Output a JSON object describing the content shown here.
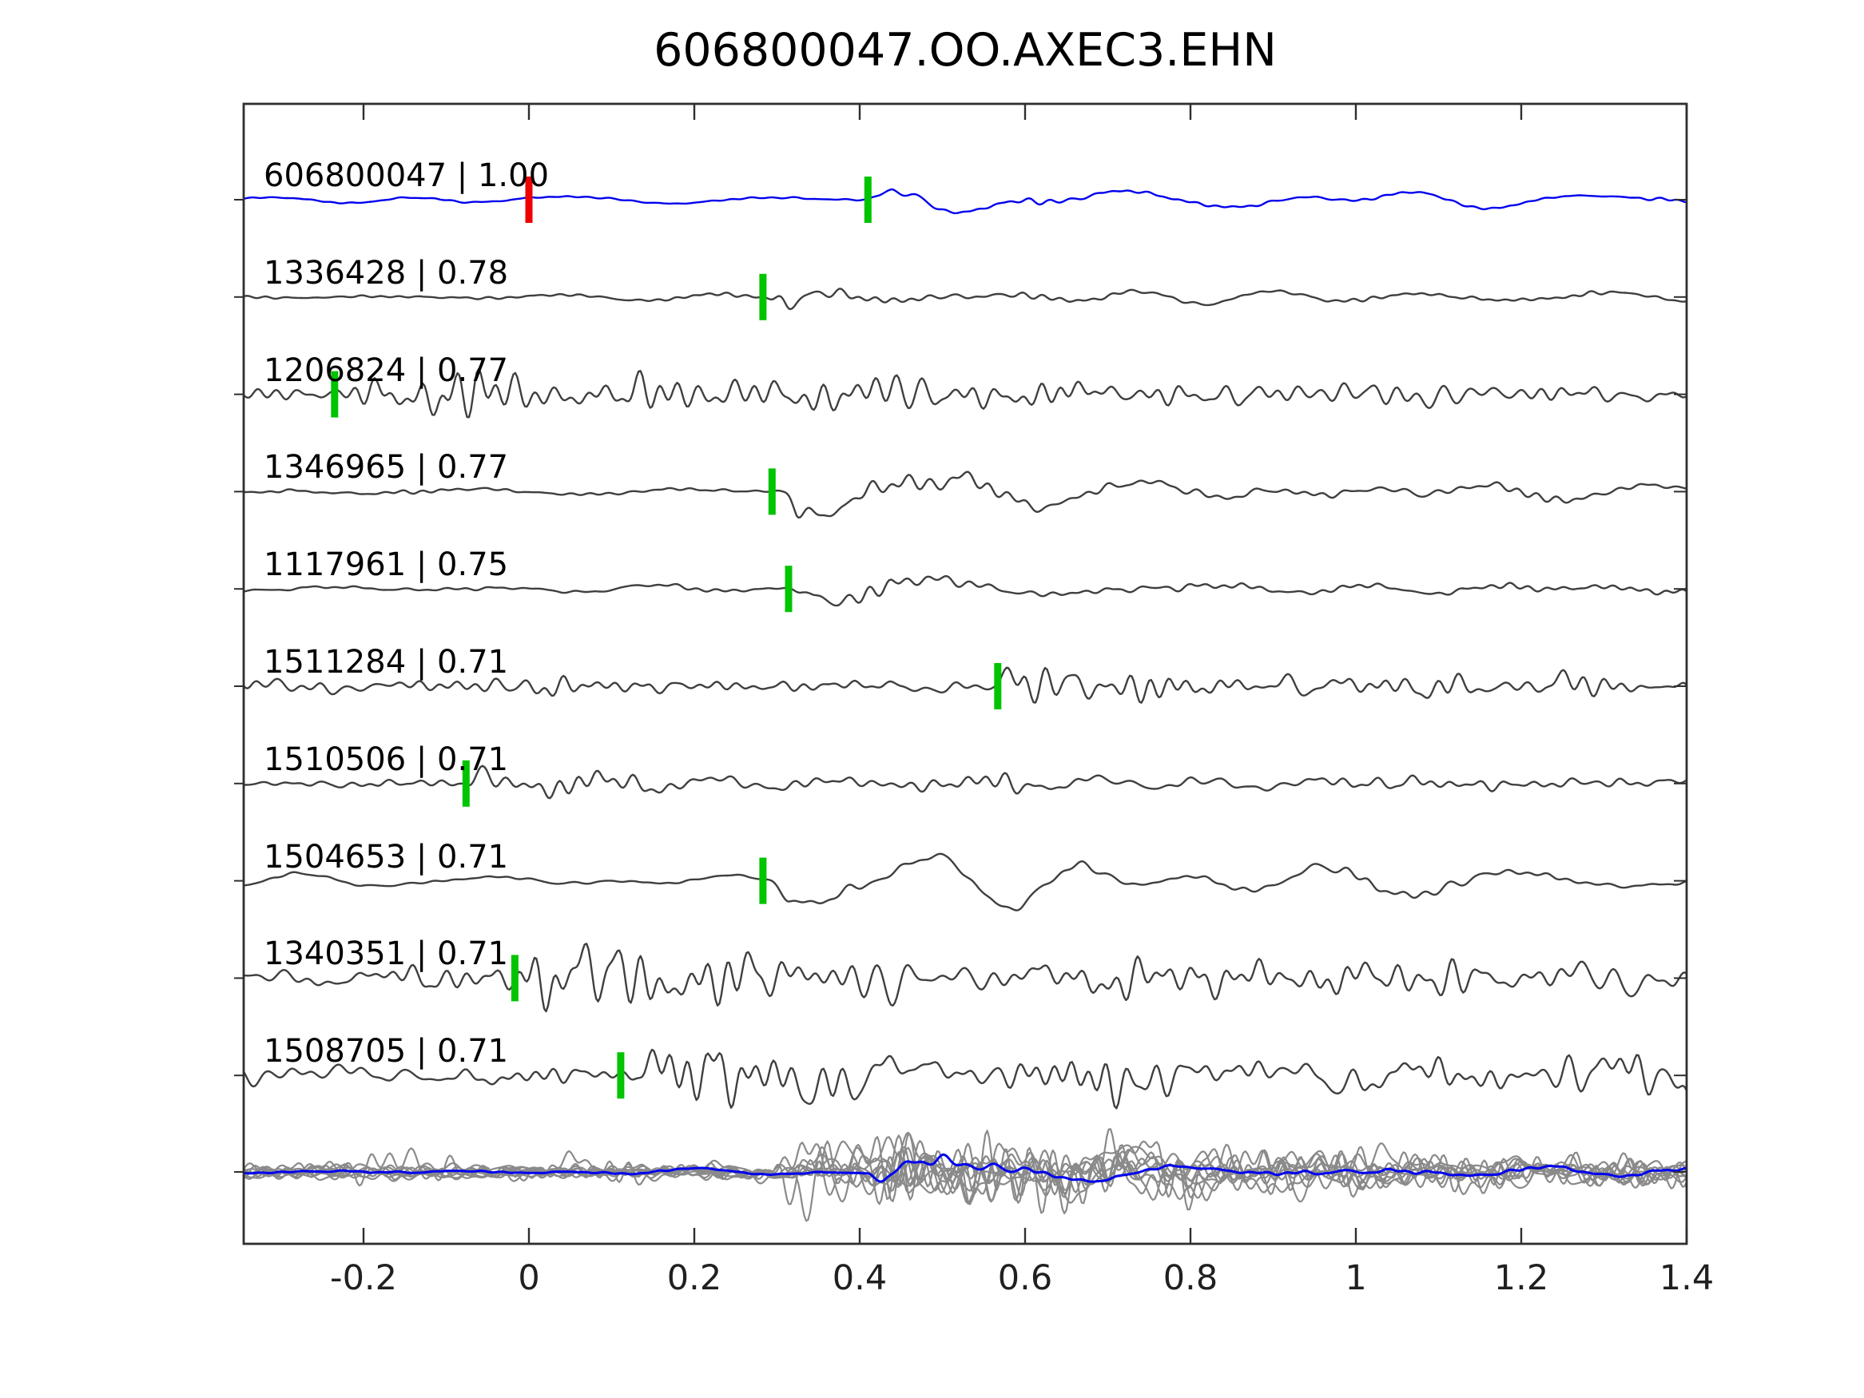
{
  "title": "606800047.OO.AXEC3.EHN",
  "colors": {
    "reference_trace": "#0000ee",
    "template_trace": "#3f3f3f",
    "overlay_trace": "#8a8a8a",
    "pick_marker": "#00c400",
    "reference_marker": "#ee0000",
    "axis": "#2e2e2e",
    "text": "#000000",
    "background": "#ffffff"
  },
  "axis": {
    "xlim": [
      -0.345,
      1.4
    ],
    "xticks": [
      {
        "value": -0.2,
        "label": "-0.2"
      },
      {
        "value": 0,
        "label": "0"
      },
      {
        "value": 0.2,
        "label": "0.2"
      },
      {
        "value": 0.4,
        "label": "0.4"
      },
      {
        "value": 0.6,
        "label": "0.6"
      },
      {
        "value": 0.8,
        "label": "0.8"
      },
      {
        "value": 1,
        "label": "1"
      },
      {
        "value": 1.2,
        "label": "1.2"
      },
      {
        "value": 1.4,
        "label": "1.4"
      }
    ]
  },
  "chart_data": {
    "type": "line",
    "title": "606800047.OO.AXEC3.EHN",
    "xlabel": "",
    "ylabel": "",
    "xlim": [
      -0.345,
      1.4
    ],
    "grid": false,
    "legend": "none",
    "description": "Correlation-detection waveform panel: reference event 606800047 (blue) plus 9 detected templates (dark gray), each annotated 'id | correlation' with a green pick marker; red marker at t=0 on reference; bottom row overlays all traces (gray) with the reference in blue.",
    "traces": [
      {
        "id": "606800047",
        "correlation": "1.00",
        "label": "606800047 | 1.00",
        "row": 1,
        "color_role": "reference_trace",
        "pick_time": 0.41,
        "markers": [
          {
            "t": 0.0,
            "color_role": "reference_marker"
          },
          {
            "t": 0.41,
            "color_role": "pick_marker"
          }
        ],
        "synth": {
          "seed": 101,
          "base": 6.5,
          "burst": 50,
          "decay": 0.12,
          "post": 11,
          "hf": 0.18,
          "bumps": []
        }
      },
      {
        "id": "1336428",
        "correlation": "0.78",
        "label": "1336428 | 0.78",
        "row": 2,
        "color_role": "template_trace",
        "pick_time": 0.283,
        "markers": [
          {
            "t": 0.283,
            "color_role": "pick_marker"
          }
        ],
        "synth": {
          "seed": 202,
          "base": 6,
          "burst": 46,
          "decay": 0.09,
          "post": 9,
          "hf": 0.28,
          "bumps": [
            {
              "t": 0.2,
              "amp": 5,
              "w": 0.07
            }
          ]
        }
      },
      {
        "id": "1206824",
        "correlation": "0.77",
        "label": "1206824 | 0.77",
        "row": 3,
        "color_role": "template_trace",
        "pick_time": -0.235,
        "markers": [
          {
            "t": -0.235,
            "color_role": "pick_marker"
          }
        ],
        "synth": {
          "seed": 303,
          "base": 11,
          "burst": 28,
          "decay": 0.55,
          "post": 15,
          "hf": 0.72,
          "bumps": []
        }
      },
      {
        "id": "1346965",
        "correlation": "0.77",
        "label": "1346965 | 0.77",
        "row": 4,
        "color_role": "template_trace",
        "pick_time": 0.294,
        "markers": [
          {
            "t": 0.294,
            "color_role": "pick_marker"
          }
        ],
        "synth": {
          "seed": 404,
          "base": 8,
          "burst": 46,
          "decay": 0.2,
          "post": 13,
          "hf": 0.3,
          "bumps": []
        }
      },
      {
        "id": "1117961",
        "correlation": "0.75",
        "label": "1117961 | 0.75",
        "row": 5,
        "color_role": "template_trace",
        "pick_time": 0.314,
        "markers": [
          {
            "t": 0.314,
            "color_role": "pick_marker"
          }
        ],
        "synth": {
          "seed": 505,
          "base": 8,
          "burst": 44,
          "decay": 0.22,
          "post": 13,
          "hf": 0.35,
          "bumps": []
        }
      },
      {
        "id": "1511284",
        "correlation": "0.71",
        "label": "1511284 | 0.71",
        "row": 6,
        "color_role": "template_trace",
        "pick_time": 0.567,
        "markers": [
          {
            "t": 0.567,
            "color_role": "pick_marker"
          }
        ],
        "synth": {
          "seed": 606,
          "base": 13,
          "burst": 44,
          "decay": 0.09,
          "post": 15,
          "hf": 0.68,
          "bumps": [
            {
              "t": 0.02,
              "amp": 10,
              "w": 0.03
            }
          ]
        }
      },
      {
        "id": "1510506",
        "correlation": "0.71",
        "label": "1510506 | 0.71",
        "row": 7,
        "color_role": "template_trace",
        "pick_time": -0.076,
        "markers": [
          {
            "t": -0.076,
            "color_role": "pick_marker"
          }
        ],
        "synth": {
          "seed": 707,
          "base": 9,
          "burst": 58,
          "decay": 0.03,
          "post": 14,
          "hf": 0.62,
          "bumps": []
        }
      },
      {
        "id": "1504653",
        "correlation": "0.71",
        "label": "1504653 | 0.71",
        "row": 8,
        "color_role": "template_trace",
        "pick_time": 0.283,
        "markers": [
          {
            "t": 0.283,
            "color_role": "pick_marker"
          }
        ],
        "synth": {
          "seed": 808,
          "base": 12,
          "burst": 30,
          "decay": 0.4,
          "post": 17,
          "hf": 0.16,
          "bumps": [
            {
              "t": 1.03,
              "amp": 22,
              "w": 0.09
            }
          ]
        }
      },
      {
        "id": "1340351",
        "correlation": "0.71",
        "label": "1340351 | 0.71",
        "row": 9,
        "color_role": "template_trace",
        "pick_time": -0.017,
        "markers": [
          {
            "t": -0.017,
            "color_role": "pick_marker"
          }
        ],
        "synth": {
          "seed": 909,
          "base": 23,
          "burst": 26,
          "decay": 0.3,
          "post": 22,
          "hf": 0.7,
          "bumps": []
        }
      },
      {
        "id": "1508705",
        "correlation": "0.71",
        "label": "1508705 | 0.71",
        "row": 10,
        "color_role": "template_trace",
        "pick_time": 0.111,
        "markers": [
          {
            "t": 0.111,
            "color_role": "pick_marker"
          }
        ],
        "synth": {
          "seed": 1010,
          "base": 23,
          "burst": 28,
          "decay": 0.45,
          "post": 23,
          "hf": 0.66,
          "bumps": [
            {
              "t": 1.34,
              "amp": 42,
              "w": 0.05
            }
          ]
        }
      }
    ],
    "overlay": {
      "description": "all traces superimposed on common baseline",
      "blue": {
        "color_role": "reference_trace",
        "synth": {
          "seed": 2020,
          "base": 6,
          "burst": 55,
          "decay": 0.12,
          "post": 10,
          "hf": 0.22,
          "t0": 0.4,
          "bumps": []
        }
      },
      "members": [
        {
          "synth": {
            "seed": 3001,
            "t0": 0.3,
            "base": 16,
            "burst": 55,
            "decay": 0.3,
            "post": 24,
            "hf": 0.5,
            "bumps": []
          }
        },
        {
          "synth": {
            "seed": 3002,
            "t0": 0.34,
            "base": 18,
            "burst": 65,
            "decay": 0.35,
            "post": 26,
            "hf": 0.55,
            "bumps": [
              {
                "t": 1.33,
                "amp": 45,
                "w": 0.05
              }
            ]
          }
        },
        {
          "synth": {
            "seed": 3003,
            "t0": 0.28,
            "base": 15,
            "burst": 45,
            "decay": 0.3,
            "post": 22,
            "hf": 0.6,
            "bumps": [
              {
                "t": -0.17,
                "amp": 30,
                "w": 0.03
              }
            ]
          }
        },
        {
          "synth": {
            "seed": 3004,
            "t0": 0.4,
            "base": 17,
            "burst": 70,
            "decay": 0.4,
            "post": 28,
            "hf": 0.5,
            "bumps": []
          }
        },
        {
          "synth": {
            "seed": 3005,
            "t0": 0.32,
            "base": 16,
            "burst": 50,
            "decay": 0.28,
            "post": 24,
            "hf": 0.65,
            "bumps": [
              {
                "t": 0.03,
                "amp": 35,
                "w": 0.03
              }
            ]
          }
        },
        {
          "synth": {
            "seed": 3006,
            "t0": 0.36,
            "base": 19,
            "burst": 60,
            "decay": 0.45,
            "post": 26,
            "hf": 0.55,
            "bumps": []
          }
        },
        {
          "synth": {
            "seed": 3007,
            "t0": 0.3,
            "base": 15,
            "burst": 48,
            "decay": 0.3,
            "post": 22,
            "hf": 0.6,
            "bumps": [
              {
                "t": 0.1,
                "amp": 30,
                "w": 0.03
              }
            ]
          }
        },
        {
          "synth": {
            "seed": 3008,
            "t0": 0.42,
            "base": 18,
            "burst": 72,
            "decay": 0.35,
            "post": 27,
            "hf": 0.5,
            "bumps": []
          }
        },
        {
          "synth": {
            "seed": 3009,
            "t0": 0.34,
            "base": 16,
            "burst": 52,
            "decay": 0.4,
            "post": 24,
            "hf": 0.6,
            "bumps": [
              {
                "t": -0.05,
                "amp": 25,
                "w": 0.04
              }
            ]
          }
        },
        {
          "synth": {
            "seed": 3010,
            "t0": 0.38,
            "base": 17,
            "burst": 58,
            "decay": 0.32,
            "post": 25,
            "hf": 0.55,
            "bumps": []
          }
        }
      ]
    }
  }
}
